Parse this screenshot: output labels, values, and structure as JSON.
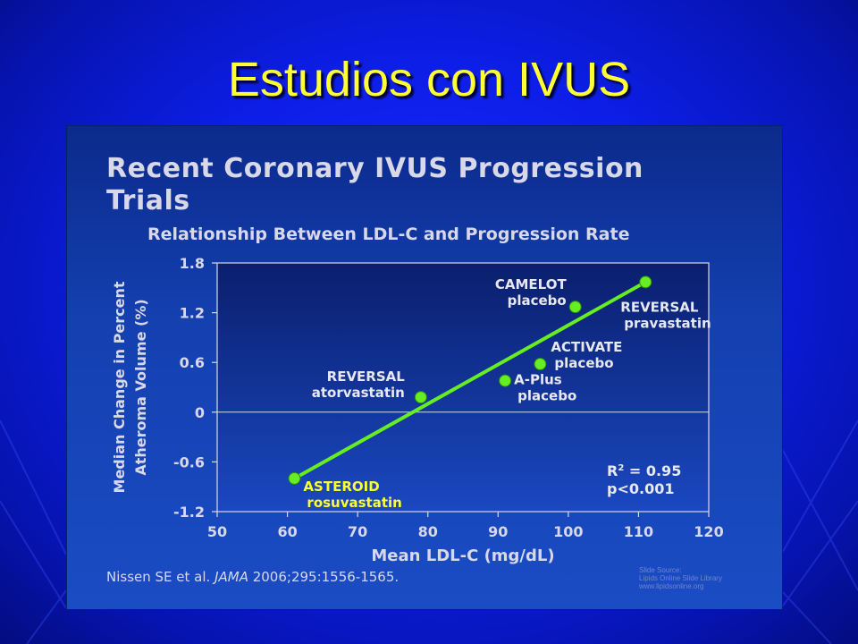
{
  "slide": {
    "title": "Estudios con IVUS",
    "background_color": "#1020e0",
    "title_color": "#ffff33"
  },
  "figure": {
    "title_line1": "Recent Coronary IVUS Progression",
    "title_line2": "Trials",
    "subtitle": "Relationship Between LDL-C and Progression Rate",
    "citation_author": "Nissen SE et al. ",
    "citation_journal": "JAMA",
    "citation_rest": " 2006;295:1556-1565.",
    "source_lines": [
      "Slide Source:",
      "Lipids Online Slide Library",
      "www.lipidsonline.org"
    ]
  },
  "chart_data": {
    "type": "scatter",
    "xlabel": "Mean LDL-C (mg/dL)",
    "ylabel_line1": "Median Change in Percent",
    "ylabel_line2": "Atheroma Volume (%)",
    "xlim": [
      50,
      120
    ],
    "ylim": [
      -1.2,
      1.8
    ],
    "xticks": [
      50,
      60,
      70,
      80,
      90,
      100,
      110,
      120
    ],
    "yticks": [
      1.8,
      1.2,
      0.6,
      0,
      -0.6,
      -1.2
    ],
    "ytick_labels": [
      "1.8",
      "1.2",
      "0.6",
      "0",
      "-0.6",
      "-1.2"
    ],
    "points": [
      {
        "x": 61,
        "y": -0.8,
        "label1": "ASTEROID",
        "label2": "rosuvastatin",
        "label_color": "#ffff33"
      },
      {
        "x": 79,
        "y": 0.18,
        "label1": "REVERSAL",
        "label2": "atorvastatin",
        "label_color": "#e8e8f0"
      },
      {
        "x": 91,
        "y": 0.38,
        "label1": "A-Plus",
        "label2": "placebo",
        "label_color": "#e8e8f0"
      },
      {
        "x": 96,
        "y": 0.58,
        "label1": "ACTIVATE",
        "label2": "placebo",
        "label_color": "#e8e8f0"
      },
      {
        "x": 101,
        "y": 1.27,
        "label1": "CAMELOT",
        "label2": "placebo",
        "label_color": "#e8e8f0"
      },
      {
        "x": 111,
        "y": 1.57,
        "label1": "REVERSAL",
        "label2": "pravastatin",
        "label_color": "#e8e8f0"
      }
    ],
    "fit_line": {
      "x": [
        61,
        111
      ],
      "y": [
        -0.8,
        1.57
      ]
    },
    "stats_line1_prefix": "R",
    "stats_line1_sup": "2",
    "stats_line1_suffix": " = 0.95",
    "stats_line2": "p<0.001",
    "point_color": "#66ee22",
    "line_color": "#66ee22",
    "grid": false
  }
}
